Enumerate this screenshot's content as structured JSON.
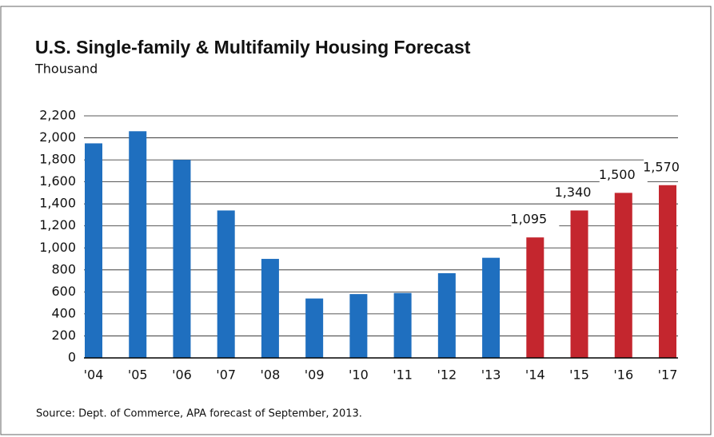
{
  "chart_data": {
    "type": "bar",
    "title": "U.S. Single-family & Multifamily Housing Forecast",
    "subtitle": "Thousand",
    "source": "Source:  Dept. of Commerce, APA forecast of September, 2013.",
    "categories": [
      "'04",
      "'05",
      "'06",
      "'07",
      "'08",
      "'09",
      "'10",
      "'11",
      "'12",
      "'13",
      "'14",
      "'15",
      "'16",
      "'17"
    ],
    "values": [
      1950,
      2060,
      1800,
      1340,
      900,
      540,
      580,
      590,
      770,
      910,
      1095,
      1340,
      1500,
      1570
    ],
    "value_labels": [
      null,
      null,
      null,
      null,
      null,
      null,
      null,
      null,
      null,
      null,
      "1,095",
      "1,340",
      "1,500",
      "1,570"
    ],
    "colors": [
      "#1f6fbf",
      "#1f6fbf",
      "#1f6fbf",
      "#1f6fbf",
      "#1f6fbf",
      "#1f6fbf",
      "#1f6fbf",
      "#1f6fbf",
      "#1f6fbf",
      "#1f6fbf",
      "#c4262e",
      "#c4262e",
      "#c4262e",
      "#c4262e"
    ],
    "ylim": [
      0,
      2200
    ],
    "yticks": [
      0,
      200,
      400,
      600,
      800,
      {
        "value": 1000,
        "label": "1,000"
      },
      {
        "value": 1200,
        "label": "1,200"
      },
      {
        "value": 1400,
        "label": "1,400"
      },
      {
        "value": 1600,
        "label": "1,600"
      },
      {
        "value": 1800,
        "label": "1,800"
      },
      {
        "value": 2000,
        "label": "2,000"
      },
      {
        "value": 2200,
        "label": "2,200"
      }
    ],
    "grid": true
  }
}
